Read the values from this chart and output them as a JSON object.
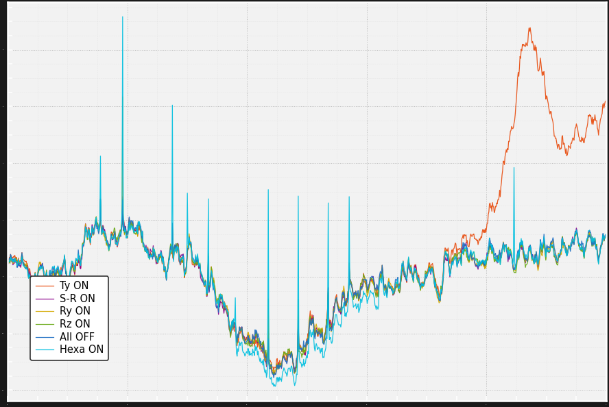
{
  "legend_labels": [
    "All OFF",
    "Ty ON",
    "Ry ON",
    "S-R ON",
    "Rz ON",
    "Hexa ON"
  ],
  "line_colors": [
    "#1f6fc4",
    "#e84c0e",
    "#d4aa00",
    "#8b008b",
    "#6aaa18",
    "#00bfdf"
  ],
  "background_color": "#f0f0f0",
  "grid_color": "#cccccc",
  "n_points": 1000,
  "seed": 7
}
